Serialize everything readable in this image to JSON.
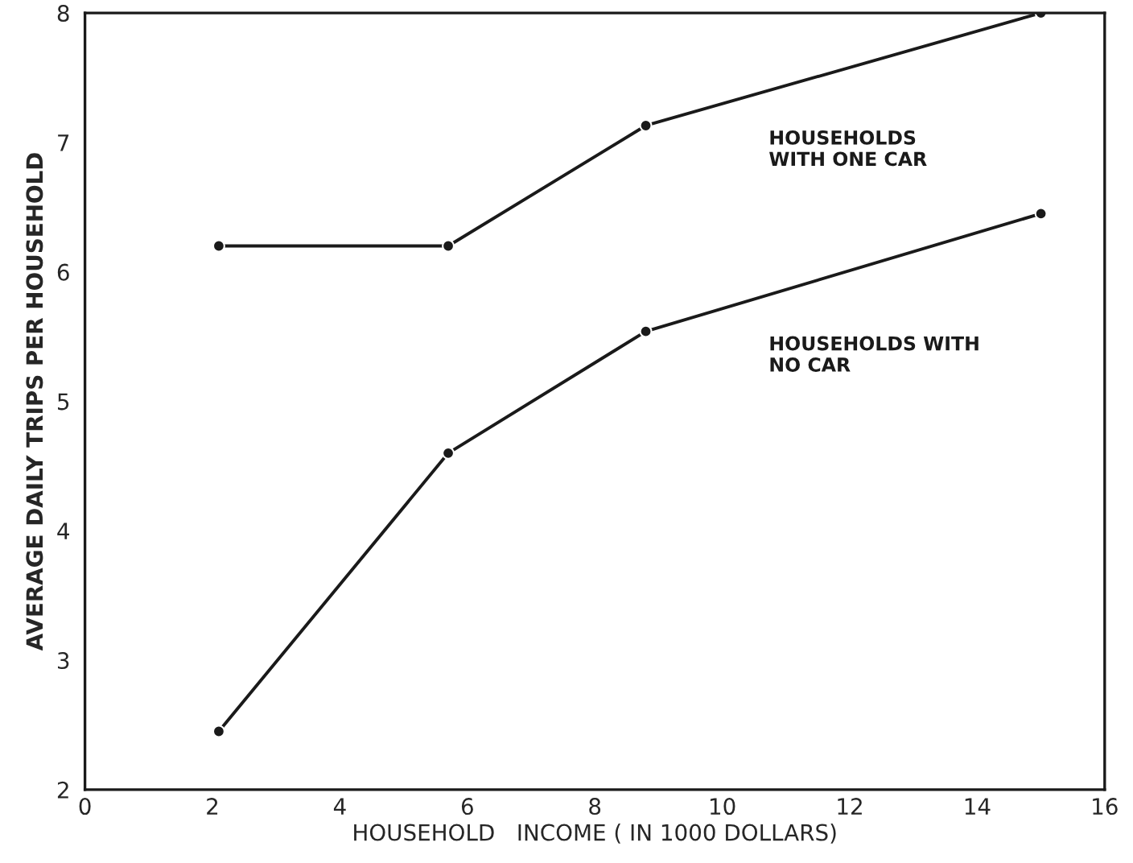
{
  "chart_data": {
    "type": "line",
    "xlabel": "HOUSEHOLD   INCOME ( IN 1000 DOLLARS)",
    "ylabel": "AVERAGE DAILY TRIPS PER HOUSEHOLD",
    "x": [
      2.1,
      5.7,
      8.8,
      15.0
    ],
    "series": [
      {
        "name": "HOUSEHOLDS\nWITH ONE CAR",
        "color": "#1a1a1a",
        "values": [
          6.2,
          6.2,
          7.13,
          8.0
        ]
      },
      {
        "name": "HOUSEHOLDS WITH\nNO CAR",
        "color": "#1a1a1a",
        "values": [
          2.45,
          4.6,
          5.54,
          6.45
        ]
      }
    ],
    "xlim": [
      0,
      16
    ],
    "xticks": [
      0,
      2,
      4,
      6,
      8,
      10,
      12,
      14,
      16
    ],
    "ylim": [
      2,
      8
    ],
    "yticks": [
      2,
      3,
      4,
      5,
      6,
      7,
      8
    ],
    "marker": "circle",
    "line_style": "solid",
    "grid": false,
    "legend": false
  }
}
